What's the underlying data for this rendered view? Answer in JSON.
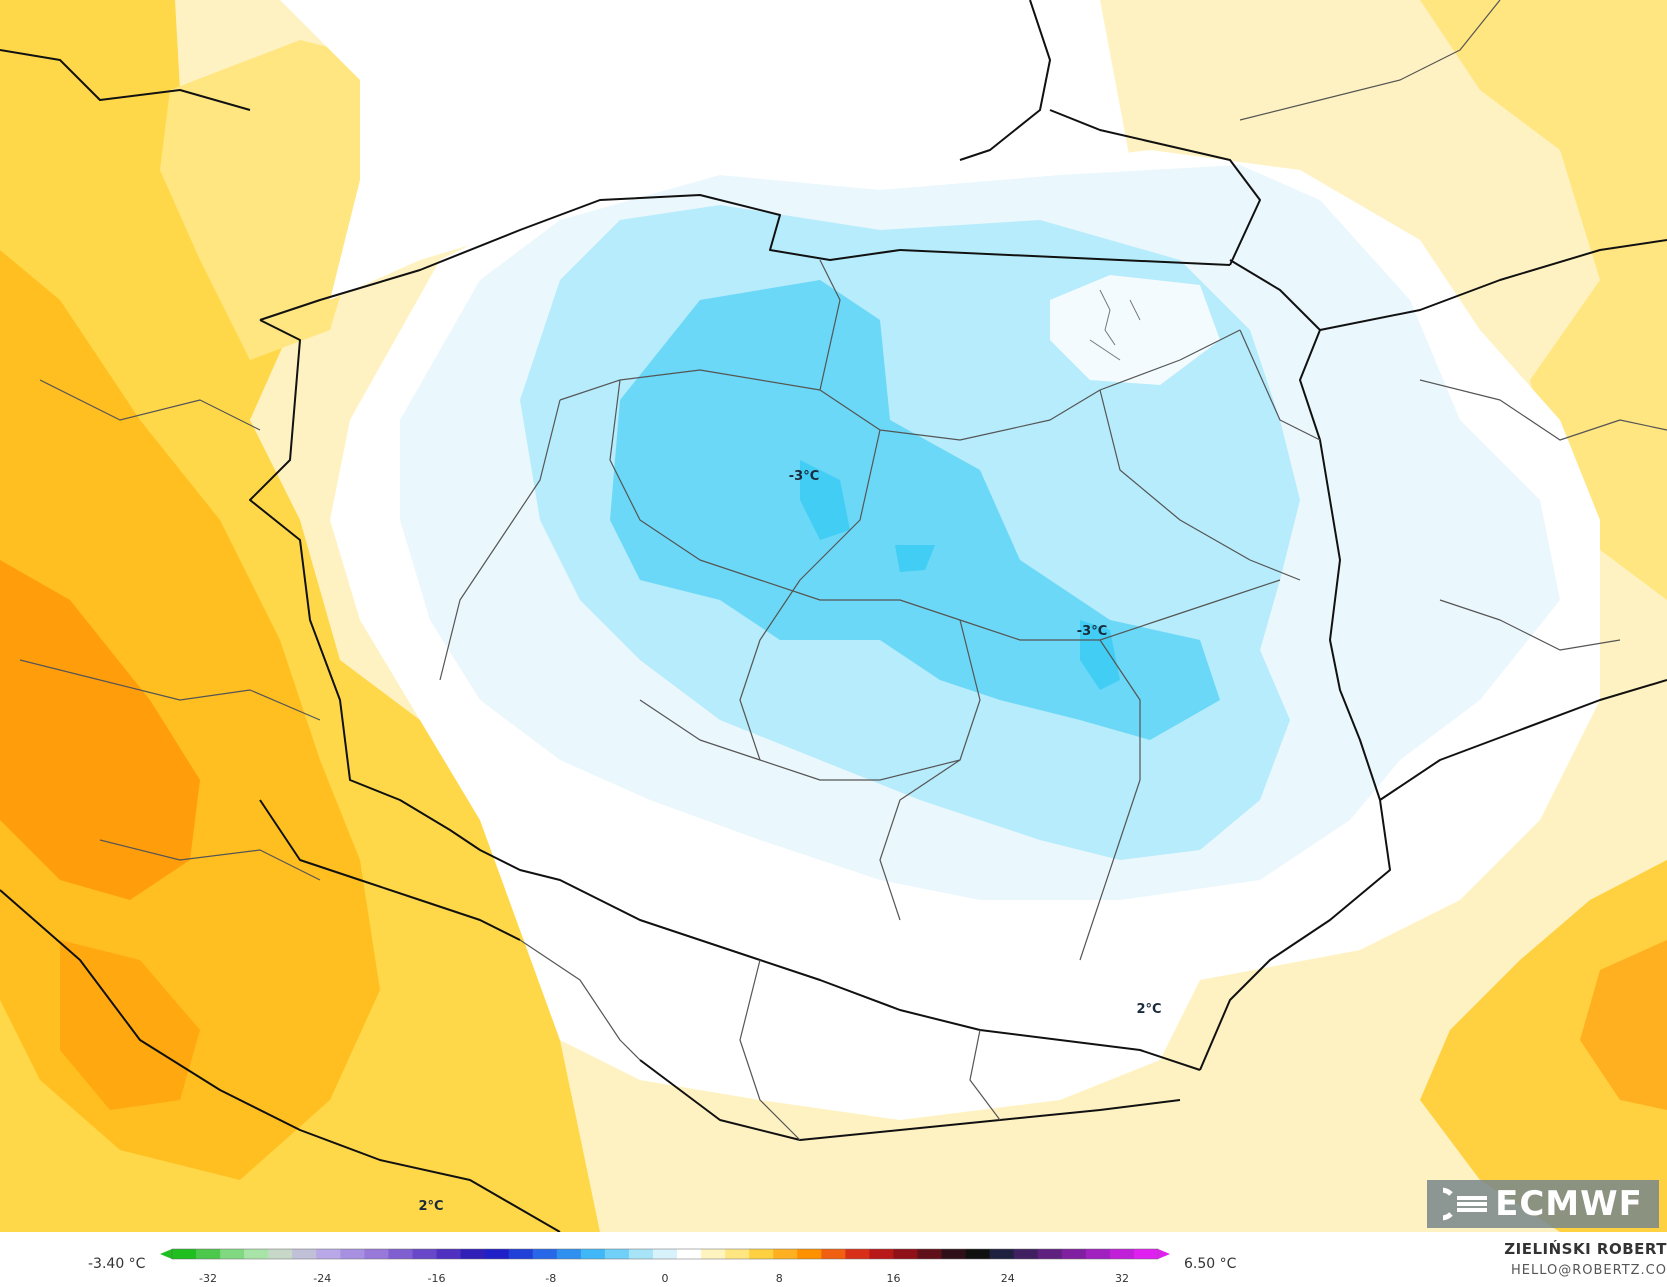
{
  "map": {
    "labels": {
      "min1": "-3°C",
      "min2": "-3°C",
      "max1": "2°C",
      "max2": "2°C"
    },
    "icons": [
      "ecmwf-logo-icon"
    ]
  },
  "colorscale": {
    "min_label": "-3.40 °C",
    "max_label": "6.50 °C",
    "ticks": [
      "-32",
      "-24",
      "-16",
      "-8",
      "0",
      "8",
      "16",
      "24",
      "32"
    ],
    "colors": [
      "#1fbf1f",
      "#4cc94c",
      "#80d880",
      "#a8e3a8",
      "#c8d8c8",
      "#c0c0d8",
      "#b8a8e8",
      "#a890e0",
      "#9878d8",
      "#8060d0",
      "#6848c8",
      "#5030c0",
      "#3020b8",
      "#2020c8",
      "#2040d8",
      "#2868e8",
      "#3090f0",
      "#40b8f8",
      "#70d0f8",
      "#a8e4f8",
      "#d8f2fc",
      "#ffffff",
      "#fff4c0",
      "#ffe680",
      "#ffd040",
      "#ffb020",
      "#ff9000",
      "#f06010",
      "#d83018",
      "#b81818",
      "#901018",
      "#601018",
      "#301018",
      "#101010",
      "#202040",
      "#402060",
      "#602080",
      "#8020a0",
      "#a020c0",
      "#c020d8",
      "#e020f0"
    ]
  },
  "branding": {
    "logo_text": "ECMWF",
    "author": "ZIELIŃSKI ROBERT",
    "email": "HELLO@ROBERTZ.CO"
  }
}
